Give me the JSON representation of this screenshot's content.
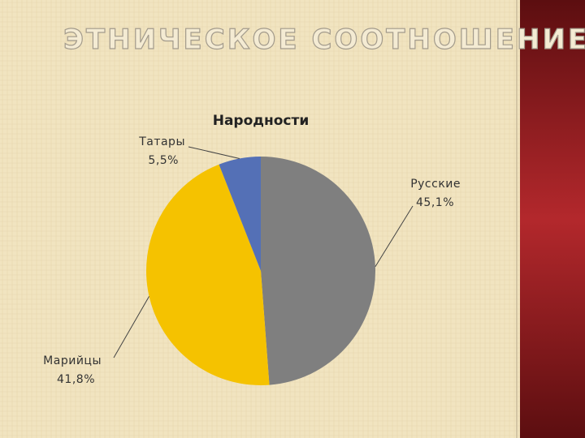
{
  "slide_title": "ЭТНИЧЕСКОЕ СООТНОШЕНИЕ",
  "chart_data": {
    "type": "pie",
    "title": "Народности",
    "categories": [
      "Русские",
      "Марийцы",
      "Татары"
    ],
    "values": [
      45.1,
      41.8,
      5.5
    ],
    "value_labels": [
      "45,1%",
      "41,8%",
      "5,5%"
    ],
    "colors": [
      "#7f7f7f",
      "#f5c200",
      "#5470b6"
    ]
  }
}
